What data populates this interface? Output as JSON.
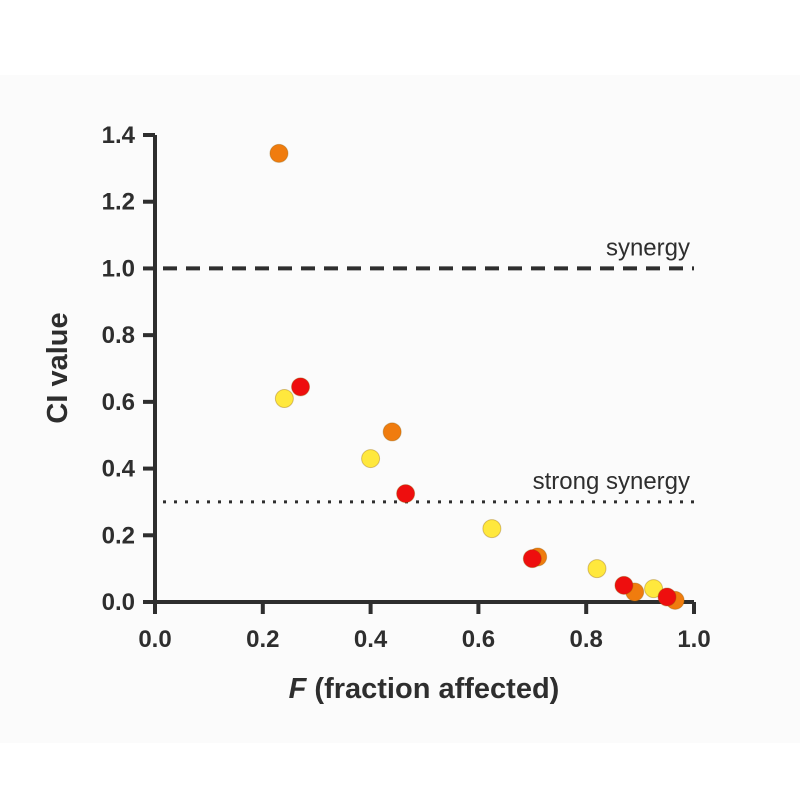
{
  "chart_data": {
    "type": "scatter",
    "xlabel_italic": "F",
    "xlabel_rest": " (fraction affected)",
    "ylabel": "CI value",
    "xlim": [
      0,
      1.0
    ],
    "ylim": [
      0,
      1.4
    ],
    "x_ticks": [
      "0.0",
      "0.2",
      "0.4",
      "0.6",
      "0.8",
      "1.0"
    ],
    "y_ticks": [
      "0.0",
      "0.2",
      "0.4",
      "0.6",
      "0.8",
      "1.0",
      "1.2",
      "1.4"
    ],
    "grid": false,
    "reference_lines": [
      {
        "label": "synergy",
        "y": 1.0,
        "style": "dashed"
      },
      {
        "label": "strong synergy",
        "y": 0.3,
        "style": "dotted"
      }
    ],
    "series": [
      {
        "color": "#ffe83d",
        "points": [
          [
            0.24,
            0.61
          ],
          [
            0.4,
            0.43
          ],
          [
            0.625,
            0.22
          ],
          [
            0.82,
            0.1
          ],
          [
            0.925,
            0.04
          ]
        ]
      },
      {
        "color": "#f07c0e",
        "points": [
          [
            0.23,
            1.345
          ],
          [
            0.44,
            0.51
          ],
          [
            0.71,
            0.135
          ],
          [
            0.89,
            0.03
          ],
          [
            0.965,
            0.005
          ]
        ]
      },
      {
        "color": "#ee0e0e",
        "points": [
          [
            0.27,
            0.645
          ],
          [
            0.465,
            0.325
          ],
          [
            0.7,
            0.13
          ],
          [
            0.87,
            0.05
          ],
          [
            0.95,
            0.015
          ]
        ]
      }
    ]
  }
}
